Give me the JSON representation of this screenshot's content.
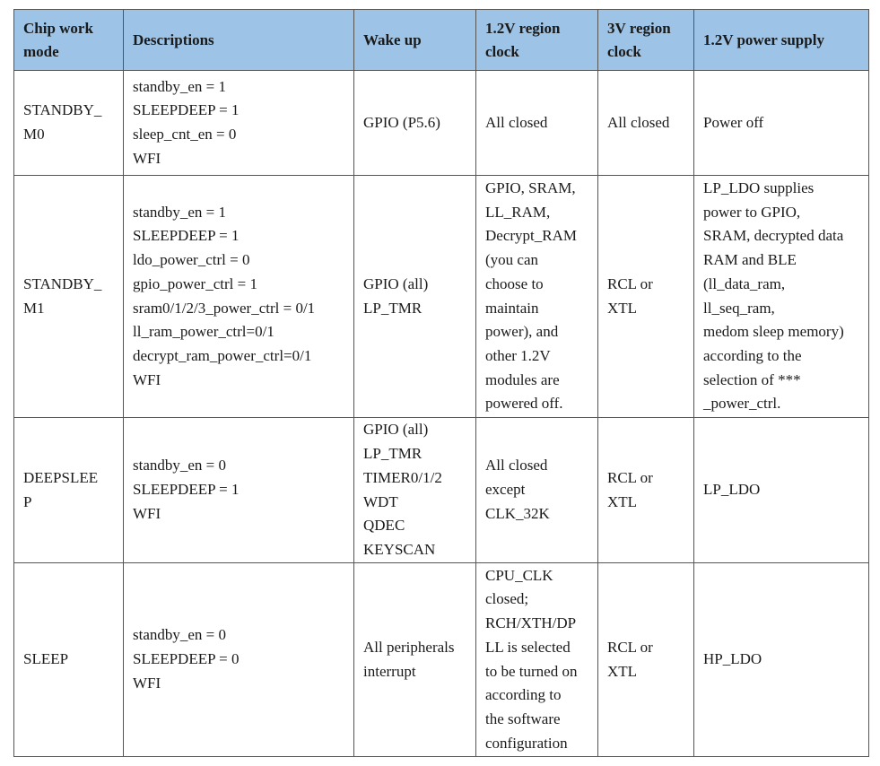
{
  "table": {
    "headers": [
      [
        "Chip work",
        "mode"
      ],
      [
        "Descriptions"
      ],
      [
        "Wake up"
      ],
      [
        "1.2V region",
        "clock"
      ],
      [
        "3V region",
        "clock"
      ],
      [
        "1.2V power supply"
      ]
    ],
    "rows": [
      {
        "mode": [
          "STANDBY_",
          "M0"
        ],
        "descriptions": [
          "standby_en = 1",
          "SLEEPDEEP = 1",
          "sleep_cnt_en = 0",
          "WFI"
        ],
        "wake_up": [
          "GPIO (P5.6)"
        ],
        "clock_1v2": [
          "All closed"
        ],
        "clock_3v": [
          "All closed"
        ],
        "power_1v2": [
          "Power off"
        ]
      },
      {
        "mode": [
          "STANDBY_",
          "M1"
        ],
        "descriptions": [
          "standby_en = 1",
          "SLEEPDEEP = 1",
          "ldo_power_ctrl = 0",
          "gpio_power_ctrl = 1",
          "sram0/1/2/3_power_ctrl = 0/1",
          "ll_ram_power_ctrl=0/1",
          "decrypt_ram_power_ctrl=0/1",
          "WFI"
        ],
        "wake_up": [
          "GPIO (all)",
          "LP_TMR"
        ],
        "clock_1v2": [
          "GPIO, SRAM,",
          "LL_RAM,",
          "Decrypt_RAM",
          "(you can",
          "choose to",
          "maintain",
          "power), and",
          "other 1.2V",
          "modules are",
          "powered off."
        ],
        "clock_3v": [
          "RCL or",
          "XTL"
        ],
        "power_1v2": [
          "LP_LDO supplies",
          "power to GPIO,",
          "SRAM, decrypted data",
          "RAM and BLE",
          "(ll_data_ram,",
          "ll_seq_ram,",
          "medom sleep memory)",
          "according to the",
          "selection of ***",
          "_power_ctrl."
        ]
      },
      {
        "mode": [
          "DEEPSLEE",
          "P"
        ],
        "descriptions": [
          "standby_en = 0",
          "SLEEPDEEP = 1",
          "WFI"
        ],
        "wake_up": [
          "GPIO (all)",
          "LP_TMR",
          "TIMER0/1/2",
          "WDT",
          "QDEC",
          "KEYSCAN"
        ],
        "clock_1v2": [
          "All closed",
          "except",
          "CLK_32K"
        ],
        "clock_3v": [
          "RCL or",
          "XTL"
        ],
        "power_1v2": [
          "LP_LDO"
        ]
      },
      {
        "mode": [
          "SLEEP"
        ],
        "descriptions": [
          "standby_en = 0",
          "SLEEPDEEP = 0",
          "WFI"
        ],
        "wake_up": [
          "All peripherals",
          "interrupt"
        ],
        "clock_1v2": [
          "CPU_CLK",
          "closed;",
          "RCH/XTH/DP",
          "LL is selected",
          "to be turned on",
          "according to",
          "the software",
          "configuration"
        ],
        "clock_3v": [
          "RCL or",
          "XTL"
        ],
        "power_1v2": [
          "HP_LDO"
        ]
      }
    ]
  },
  "colors": {
    "header_bg": "#9dc3e6",
    "border": "#555555",
    "text": "#1a1a1a"
  }
}
